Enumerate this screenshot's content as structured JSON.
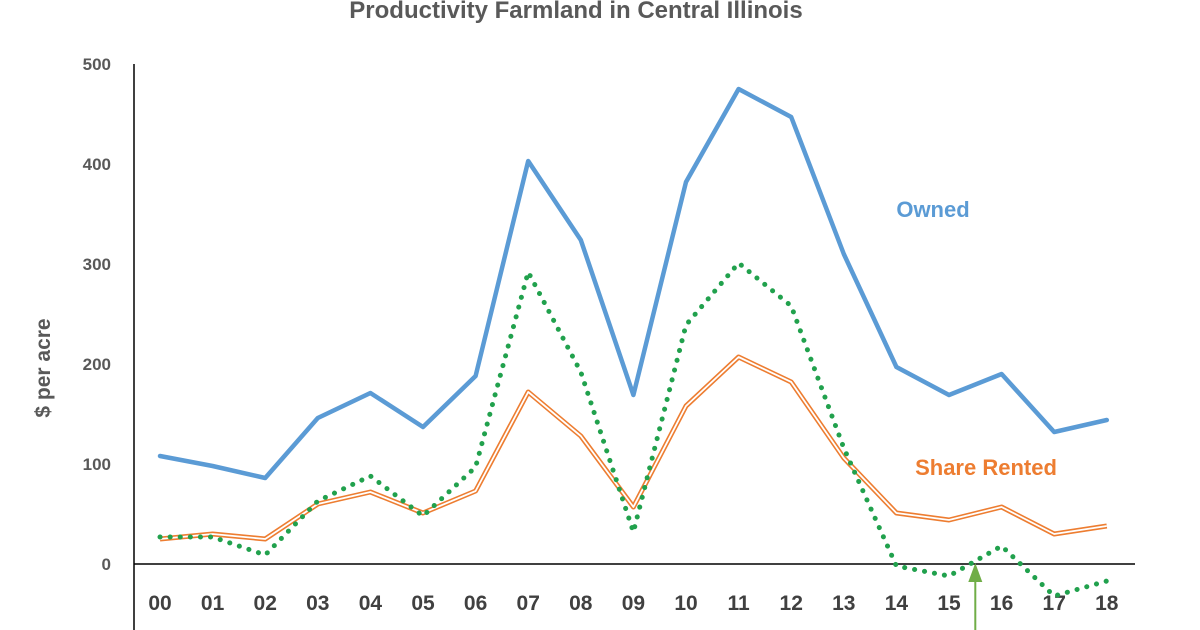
{
  "colors": {
    "owned": "#5B9BD5",
    "share_rented": "#ED7D31",
    "third_series": "#21A14D",
    "arrow": "#70AD47",
    "axis": "#000000",
    "text": "#595959"
  },
  "chart_data": {
    "type": "line",
    "title": "Productivity Farmland in Central Illinois",
    "ylabel": "$ per acre",
    "xlabel": "",
    "ylim": [
      0,
      500
    ],
    "yticks": [
      "0",
      "100",
      "200",
      "300",
      "400",
      "500"
    ],
    "categories": [
      "00",
      "01",
      "02",
      "03",
      "04",
      "05",
      "06",
      "07",
      "08",
      "09",
      "10",
      "11",
      "12",
      "13",
      "14",
      "15",
      "16",
      "17",
      "18"
    ],
    "grid": false,
    "legend": "none",
    "series": [
      {
        "name": "Owned",
        "style": "solid",
        "values": [
          108,
          98,
          86,
          146,
          171,
          137,
          188,
          403,
          324,
          169,
          382,
          475,
          447,
          310,
          197,
          169,
          190,
          132,
          144
        ]
      },
      {
        "name": "Share Rented",
        "style": "double",
        "values": [
          25,
          30,
          25,
          60,
          72,
          51,
          73,
          172,
          128,
          57,
          158,
          207,
          182,
          106,
          51,
          44,
          57,
          30,
          38
        ]
      },
      {
        "name": "",
        "style": "dotted",
        "values": [
          27,
          27,
          9,
          63,
          88,
          48,
          97,
          292,
          192,
          32,
          239,
          301,
          258,
          116,
          -2,
          -12,
          18,
          -32,
          -17
        ]
      }
    ],
    "annotations": [
      {
        "text": "Owned",
        "series": 0
      },
      {
        "text": "Share Rented",
        "series": 1
      }
    ],
    "arrow_at": "15.5"
  }
}
